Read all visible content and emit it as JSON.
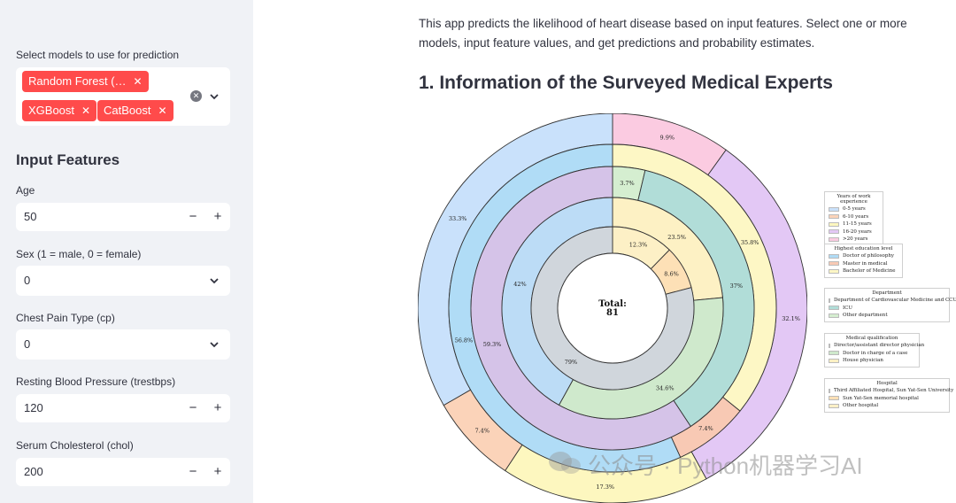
{
  "sidebar": {
    "models_label": "Select models to use for prediction",
    "selected_models": [
      "Random Forest (…",
      "XGBoost",
      "CatBoost"
    ],
    "input_features_heading": "Input Features",
    "age_label": "Age",
    "age_value": "50",
    "sex_label": "Sex (1 = male, 0 = female)",
    "sex_value": "0",
    "cp_label": "Chest Pain Type (cp)",
    "cp_value": "0",
    "bp_label": "Resting Blood Pressure (trestbps)",
    "bp_value": "120",
    "chol_label": "Serum Cholesterol (chol)",
    "chol_value": "200",
    "minus_glyph": "−",
    "plus_glyph": "+",
    "clear_glyph": "✕"
  },
  "main": {
    "intro": "This app predicts the likelihood of heart disease based on input features. Select one or more models, input feature values, and get predictions and probability estimates.",
    "section_title": "1. Information of the Surveyed Medical Experts"
  },
  "chart_data": {
    "type": "nested-donut",
    "center_label": "Total:",
    "center_value": "81",
    "rings": [
      {
        "name": "Years of work experience",
        "slices": [
          {
            "label": "0-5 years",
            "value": 33.3,
            "text": "33.3%",
            "color": "#c9e1fb"
          },
          {
            "label": "6-10 years",
            "value": 7.4,
            "text": "7.4%",
            "color": "#fbd3b9"
          },
          {
            "label": "11-15 years",
            "value": 17.3,
            "text": "17.3%",
            "color": "#fdf7bf"
          },
          {
            "label": "16-20 years",
            "value": 32.1,
            "text": "32.1%",
            "color": "#e3c8f5"
          },
          {
            "label": ">20 years",
            "value": 9.9,
            "text": "9.9%",
            "color": "#fbcbe1"
          }
        ],
        "order": [
          4,
          3,
          2,
          1,
          0
        ]
      },
      {
        "name": "Highest education level",
        "slices": [
          {
            "label": "Doctor of philosophy",
            "value": 56.8,
            "text": "56.8%",
            "color": "#b0dcf6"
          },
          {
            "label": "Master in medical",
            "value": 7.4,
            "text": "7.4%",
            "color": "#f8c9b4"
          },
          {
            "label": "Bachelor of Medicine",
            "value": 35.8,
            "text": "35.8%",
            "color": "#fdf7c5"
          }
        ],
        "order": [
          2,
          1,
          0
        ]
      },
      {
        "name": "Department",
        "slices": [
          {
            "label": "Department of Cardiovascular Medicine and CCU",
            "value": 59.3,
            "text": "59.3%",
            "color": "#d5c3e8"
          },
          {
            "label": "ICU",
            "value": 37.0,
            "text": "37%",
            "color": "#b1ddd8"
          },
          {
            "label": "Other department",
            "value": 3.7,
            "text": "3.7%",
            "color": "#d5eed0"
          }
        ],
        "order": [
          2,
          1,
          0
        ]
      },
      {
        "name": "Medical qualification",
        "slices": [
          {
            "label": "Director/assistant director physician",
            "value": 42.0,
            "text": "42%",
            "color": "#bcdcf6"
          },
          {
            "label": "Doctor in charge of a case",
            "value": 34.6,
            "text": "34.6%",
            "color": "#cfe9cc"
          },
          {
            "label": "House physician",
            "value": 23.5,
            "text": "23.5%",
            "color": "#fdf1c4"
          }
        ],
        "order": [
          2,
          1,
          0
        ]
      },
      {
        "name": "Hospital",
        "slices": [
          {
            "label": "Third Affiliated Hospital, Sun Yat-Sen University",
            "value": 79.0,
            "text": "79%",
            "color": "#d0d6dc"
          },
          {
            "label": "Sun Yat-Sen memorial hospital",
            "value": 8.6,
            "text": "8.6%",
            "color": "#fde0b6"
          },
          {
            "label": "Other hospital",
            "value": 12.3,
            "text": "12.3%",
            "color": "#fdf0c6"
          }
        ],
        "order": [
          2,
          1,
          0
        ]
      }
    ]
  },
  "watermark": "公众号 · Python机器学习AI"
}
